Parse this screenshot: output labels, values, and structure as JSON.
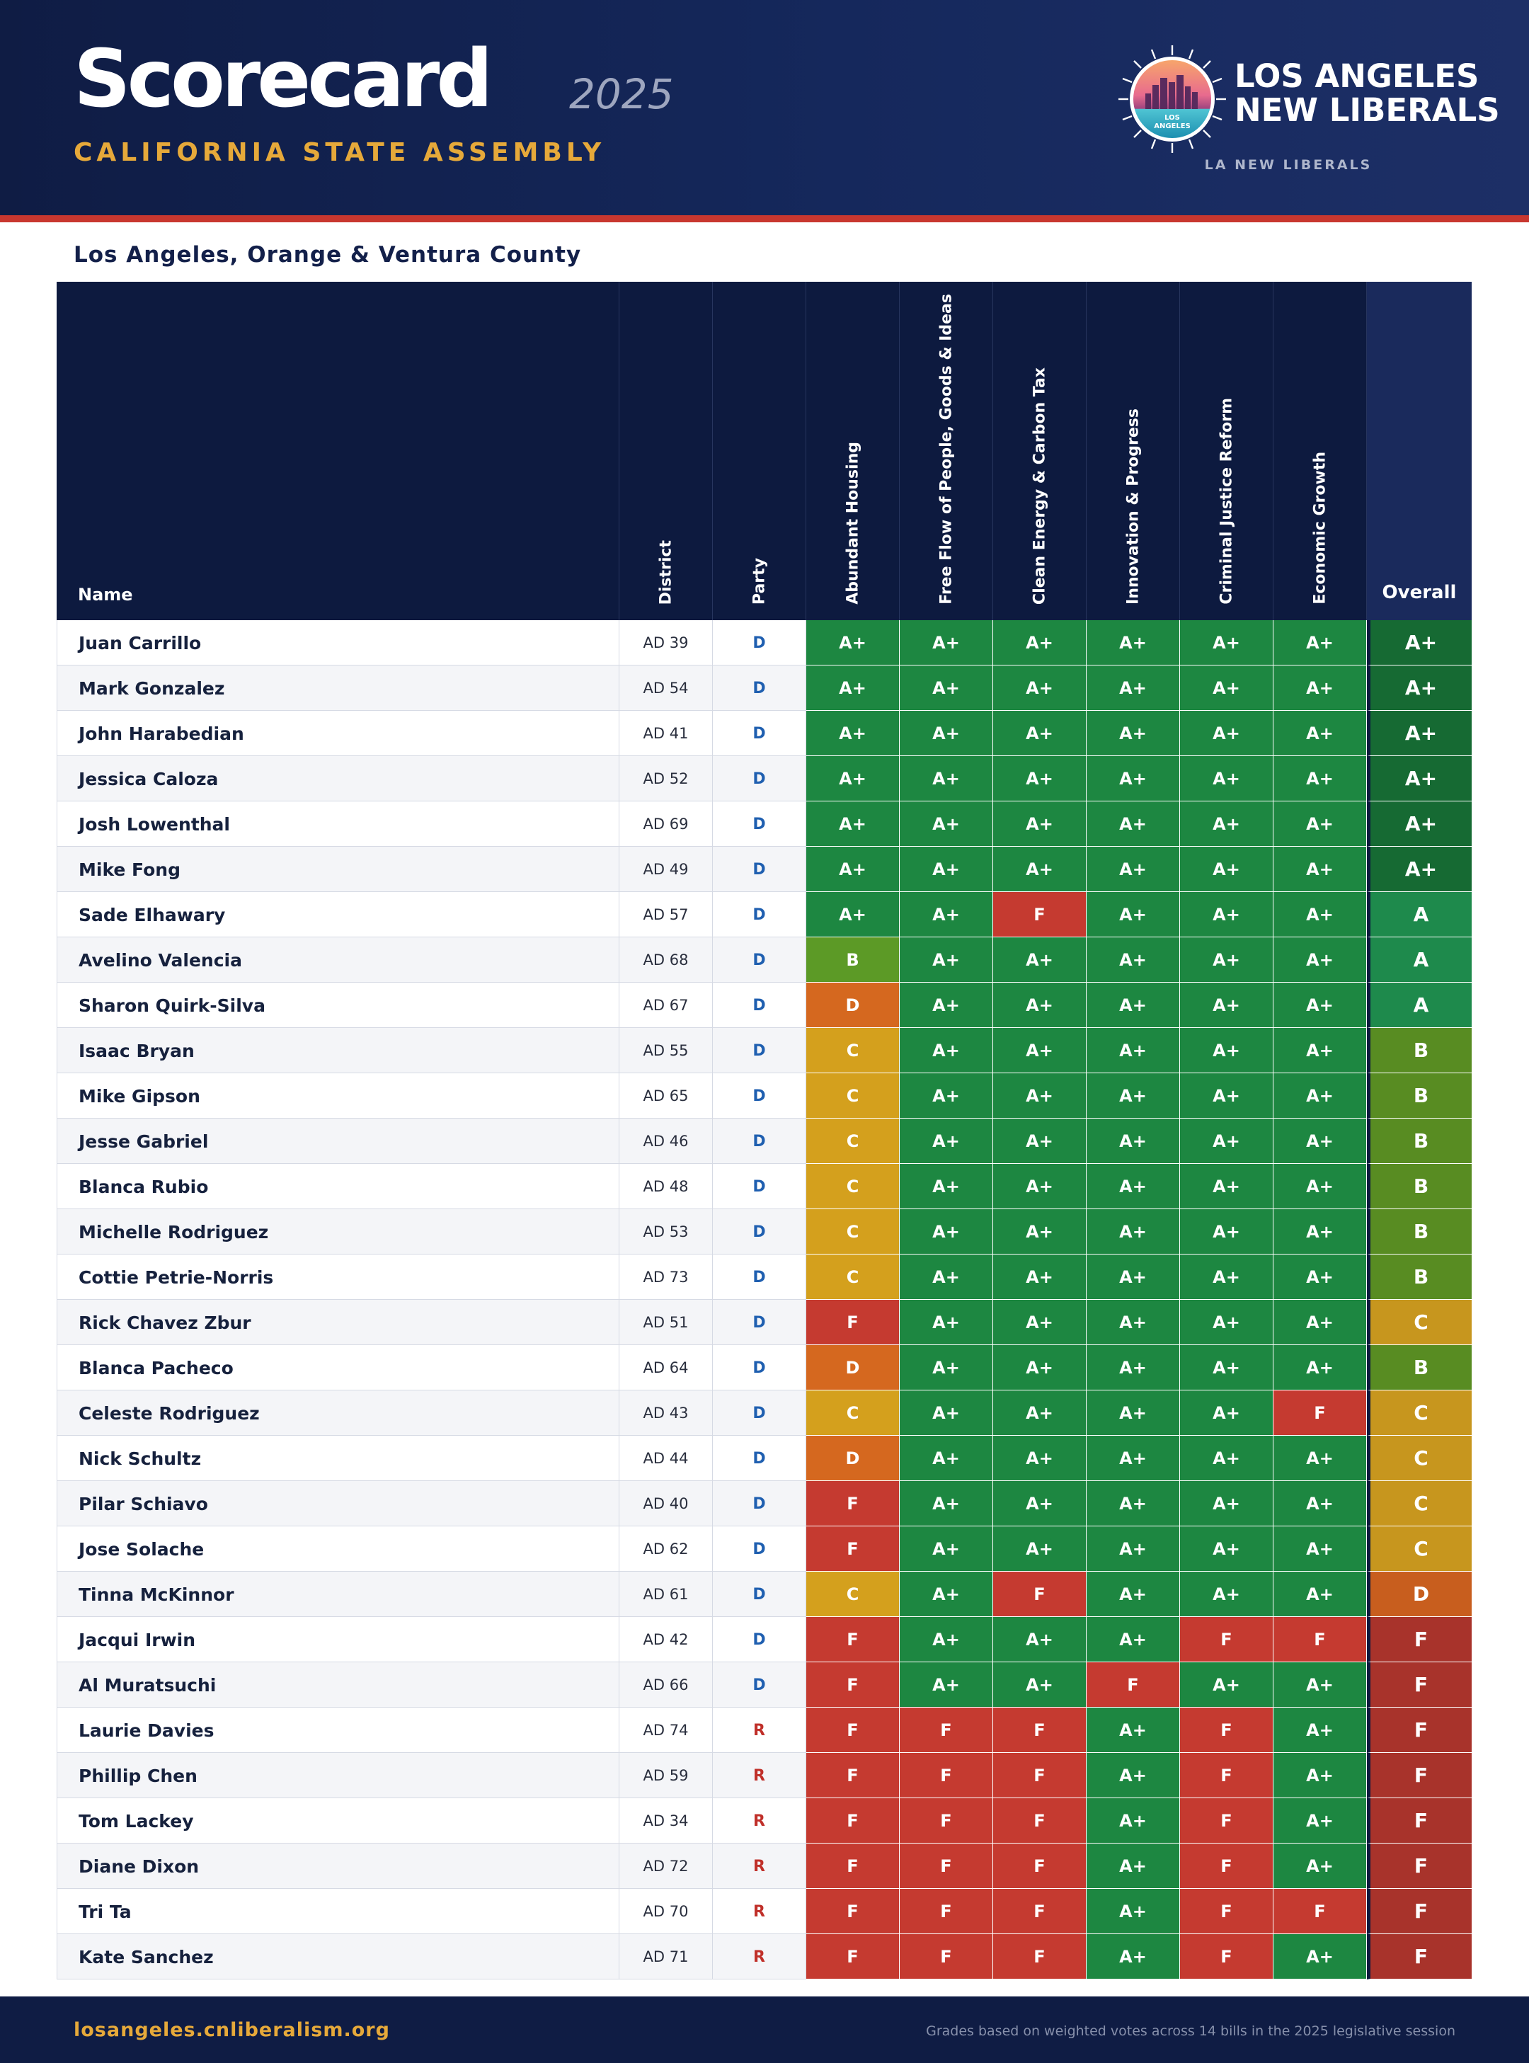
{
  "header": {
    "title": "Scorecard",
    "year": "2025",
    "subtitle": "CALIFORNIA STATE ASSEMBLY",
    "org_line1": "LOS ANGELES",
    "org_line2": "NEW LIBERALS",
    "org_sub": "LA NEW LIBERALS",
    "logo_text_line1": "LOS",
    "logo_text_line2": "ANGELES"
  },
  "region_title": "Los Angeles, Orange & Ventura County",
  "columns": {
    "name": "Name",
    "district": "District",
    "party": "Party",
    "categories": [
      "Abundant Housing",
      "Free Flow of People, Goods & Ideas",
      "Clean Energy & Carbon Tax",
      "Innovation & Progress",
      "Criminal Justice Reform",
      "Economic Growth"
    ],
    "overall": "Overall"
  },
  "colors": {
    "A+": "#1d8741",
    "A": "#1d8a4a",
    "B": "#5c9a26",
    "C": "#d4a01d",
    "D": "#d5681f",
    "F": "#c53a30",
    "overall_A+": "#166a33",
    "overall_A": "#1e8a4c",
    "overall_B": "#588c22",
    "overall_C": "#c7961e",
    "overall_D": "#c85e1e",
    "overall_F": "#a8332b",
    "party_D": "#1f5fb0",
    "party_R": "#c0302a"
  },
  "rows": [
    {
      "name": "Juan Carrillo",
      "district": "AD 39",
      "party": "D",
      "grades": [
        "A+",
        "A+",
        "A+",
        "A+",
        "A+",
        "A+"
      ],
      "overall": "A+"
    },
    {
      "name": "Mark Gonzalez",
      "district": "AD 54",
      "party": "D",
      "grades": [
        "A+",
        "A+",
        "A+",
        "A+",
        "A+",
        "A+"
      ],
      "overall": "A+"
    },
    {
      "name": "John Harabedian",
      "district": "AD 41",
      "party": "D",
      "grades": [
        "A+",
        "A+",
        "A+",
        "A+",
        "A+",
        "A+"
      ],
      "overall": "A+"
    },
    {
      "name": "Jessica Caloza",
      "district": "AD 52",
      "party": "D",
      "grades": [
        "A+",
        "A+",
        "A+",
        "A+",
        "A+",
        "A+"
      ],
      "overall": "A+"
    },
    {
      "name": "Josh Lowenthal",
      "district": "AD 69",
      "party": "D",
      "grades": [
        "A+",
        "A+",
        "A+",
        "A+",
        "A+",
        "A+"
      ],
      "overall": "A+"
    },
    {
      "name": "Mike Fong",
      "district": "AD 49",
      "party": "D",
      "grades": [
        "A+",
        "A+",
        "A+",
        "A+",
        "A+",
        "A+"
      ],
      "overall": "A+"
    },
    {
      "name": "Sade Elhawary",
      "district": "AD 57",
      "party": "D",
      "grades": [
        "A+",
        "A+",
        "F",
        "A+",
        "A+",
        "A+"
      ],
      "overall": "A"
    },
    {
      "name": "Avelino Valencia",
      "district": "AD 68",
      "party": "D",
      "grades": [
        "B",
        "A+",
        "A+",
        "A+",
        "A+",
        "A+"
      ],
      "overall": "A"
    },
    {
      "name": "Sharon Quirk-Silva",
      "district": "AD 67",
      "party": "D",
      "grades": [
        "D",
        "A+",
        "A+",
        "A+",
        "A+",
        "A+"
      ],
      "overall": "A"
    },
    {
      "name": "Isaac Bryan",
      "district": "AD 55",
      "party": "D",
      "grades": [
        "C",
        "A+",
        "A+",
        "A+",
        "A+",
        "A+"
      ],
      "overall": "B"
    },
    {
      "name": "Mike Gipson",
      "district": "AD 65",
      "party": "D",
      "grades": [
        "C",
        "A+",
        "A+",
        "A+",
        "A+",
        "A+"
      ],
      "overall": "B"
    },
    {
      "name": "Jesse Gabriel",
      "district": "AD 46",
      "party": "D",
      "grades": [
        "C",
        "A+",
        "A+",
        "A+",
        "A+",
        "A+"
      ],
      "overall": "B"
    },
    {
      "name": "Blanca Rubio",
      "district": "AD 48",
      "party": "D",
      "grades": [
        "C",
        "A+",
        "A+",
        "A+",
        "A+",
        "A+"
      ],
      "overall": "B"
    },
    {
      "name": "Michelle Rodriguez",
      "district": "AD 53",
      "party": "D",
      "grades": [
        "C",
        "A+",
        "A+",
        "A+",
        "A+",
        "A+"
      ],
      "overall": "B"
    },
    {
      "name": "Cottie Petrie-Norris",
      "district": "AD 73",
      "party": "D",
      "grades": [
        "C",
        "A+",
        "A+",
        "A+",
        "A+",
        "A+"
      ],
      "overall": "B"
    },
    {
      "name": "Rick Chavez Zbur",
      "district": "AD 51",
      "party": "D",
      "grades": [
        "F",
        "A+",
        "A+",
        "A+",
        "A+",
        "A+"
      ],
      "overall": "C"
    },
    {
      "name": "Blanca Pacheco",
      "district": "AD 64",
      "party": "D",
      "grades": [
        "D",
        "A+",
        "A+",
        "A+",
        "A+",
        "A+"
      ],
      "overall": "B"
    },
    {
      "name": "Celeste Rodriguez",
      "district": "AD 43",
      "party": "D",
      "grades": [
        "C",
        "A+",
        "A+",
        "A+",
        "A+",
        "F"
      ],
      "overall": "C"
    },
    {
      "name": "Nick Schultz",
      "district": "AD 44",
      "party": "D",
      "grades": [
        "D",
        "A+",
        "A+",
        "A+",
        "A+",
        "A+"
      ],
      "overall": "C"
    },
    {
      "name": "Pilar Schiavo",
      "district": "AD 40",
      "party": "D",
      "grades": [
        "F",
        "A+",
        "A+",
        "A+",
        "A+",
        "A+"
      ],
      "overall": "C"
    },
    {
      "name": "Jose Solache",
      "district": "AD 62",
      "party": "D",
      "grades": [
        "F",
        "A+",
        "A+",
        "A+",
        "A+",
        "A+"
      ],
      "overall": "C"
    },
    {
      "name": "Tinna McKinnor",
      "district": "AD 61",
      "party": "D",
      "grades": [
        "C",
        "A+",
        "F",
        "A+",
        "A+",
        "A+"
      ],
      "overall": "D"
    },
    {
      "name": "Jacqui Irwin",
      "district": "AD 42",
      "party": "D",
      "grades": [
        "F",
        "A+",
        "A+",
        "A+",
        "F",
        "F"
      ],
      "overall": "F"
    },
    {
      "name": "Al Muratsuchi",
      "district": "AD 66",
      "party": "D",
      "grades": [
        "F",
        "A+",
        "A+",
        "F",
        "A+",
        "A+"
      ],
      "overall": "F"
    },
    {
      "name": "Laurie Davies",
      "district": "AD 74",
      "party": "R",
      "grades": [
        "F",
        "F",
        "F",
        "A+",
        "F",
        "A+"
      ],
      "overall": "F"
    },
    {
      "name": "Phillip Chen",
      "district": "AD 59",
      "party": "R",
      "grades": [
        "F",
        "F",
        "F",
        "A+",
        "F",
        "A+"
      ],
      "overall": "F"
    },
    {
      "name": "Tom Lackey",
      "district": "AD 34",
      "party": "R",
      "grades": [
        "F",
        "F",
        "F",
        "A+",
        "F",
        "A+"
      ],
      "overall": "F"
    },
    {
      "name": "Diane Dixon",
      "district": "AD 72",
      "party": "R",
      "grades": [
        "F",
        "F",
        "F",
        "A+",
        "F",
        "A+"
      ],
      "overall": "F"
    },
    {
      "name": "Tri Ta",
      "district": "AD 70",
      "party": "R",
      "grades": [
        "F",
        "F",
        "F",
        "A+",
        "F",
        "F"
      ],
      "overall": "F"
    },
    {
      "name": "Kate Sanchez",
      "district": "AD 71",
      "party": "R",
      "grades": [
        "F",
        "F",
        "F",
        "A+",
        "F",
        "A+"
      ],
      "overall": "F"
    }
  ],
  "footer": {
    "url": "losangeles.cnliberalism.org",
    "note": "Grades based on weighted votes across 14 bills in the 2025 legislative session"
  }
}
